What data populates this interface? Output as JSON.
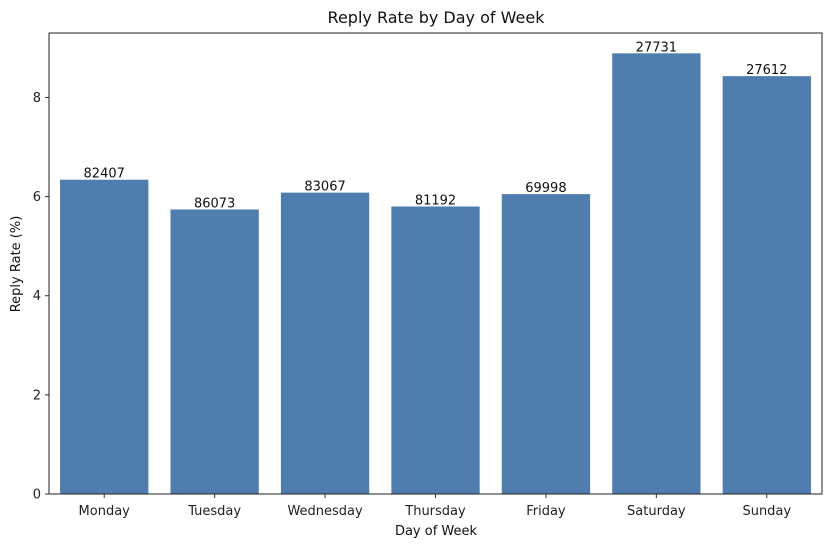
{
  "chart_data": {
    "type": "bar",
    "title": "Reply Rate by Day of Week",
    "xlabel": "Day of Week",
    "ylabel": "Reply Rate (%)",
    "categories": [
      "Monday",
      "Tuesday",
      "Wednesday",
      "Thursday",
      "Friday",
      "Saturday",
      "Sunday"
    ],
    "values": [
      6.34,
      5.74,
      6.08,
      5.8,
      6.05,
      8.89,
      8.43
    ],
    "data_labels": [
      "82407",
      "86073",
      "83067",
      "81192",
      "69998",
      "27731",
      "27612"
    ],
    "ylim": [
      0,
      9.3
    ],
    "yticks": [
      0,
      2,
      4,
      6,
      8
    ],
    "bar_color": "#4f7eae",
    "grid": false,
    "legend": "none"
  }
}
